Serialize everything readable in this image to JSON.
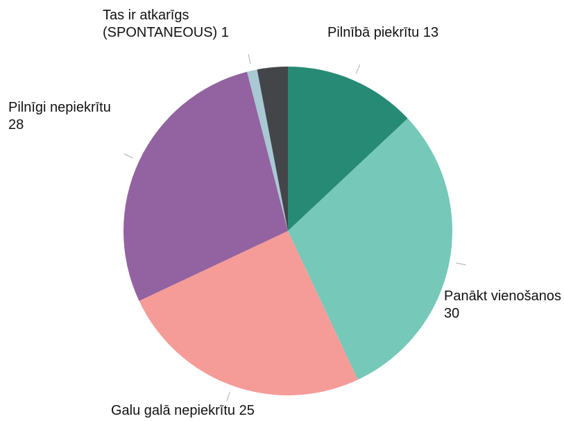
{
  "chart_data": {
    "type": "pie",
    "categories": [
      "Pilnībā piekrītu",
      "Panākt vienošanos",
      "Galu galā nepiekrītu",
      "Pilnīgi nepiekrītu",
      "Tas ir atkarīgs (SPONTANEOUS)",
      null
    ],
    "values": [
      13,
      30,
      25,
      28,
      1,
      3
    ],
    "colors": [
      "#268a75",
      "#76c8b9",
      "#f59c98",
      "#9362a0",
      "#a8c8d4",
      "#434548"
    ]
  }
}
